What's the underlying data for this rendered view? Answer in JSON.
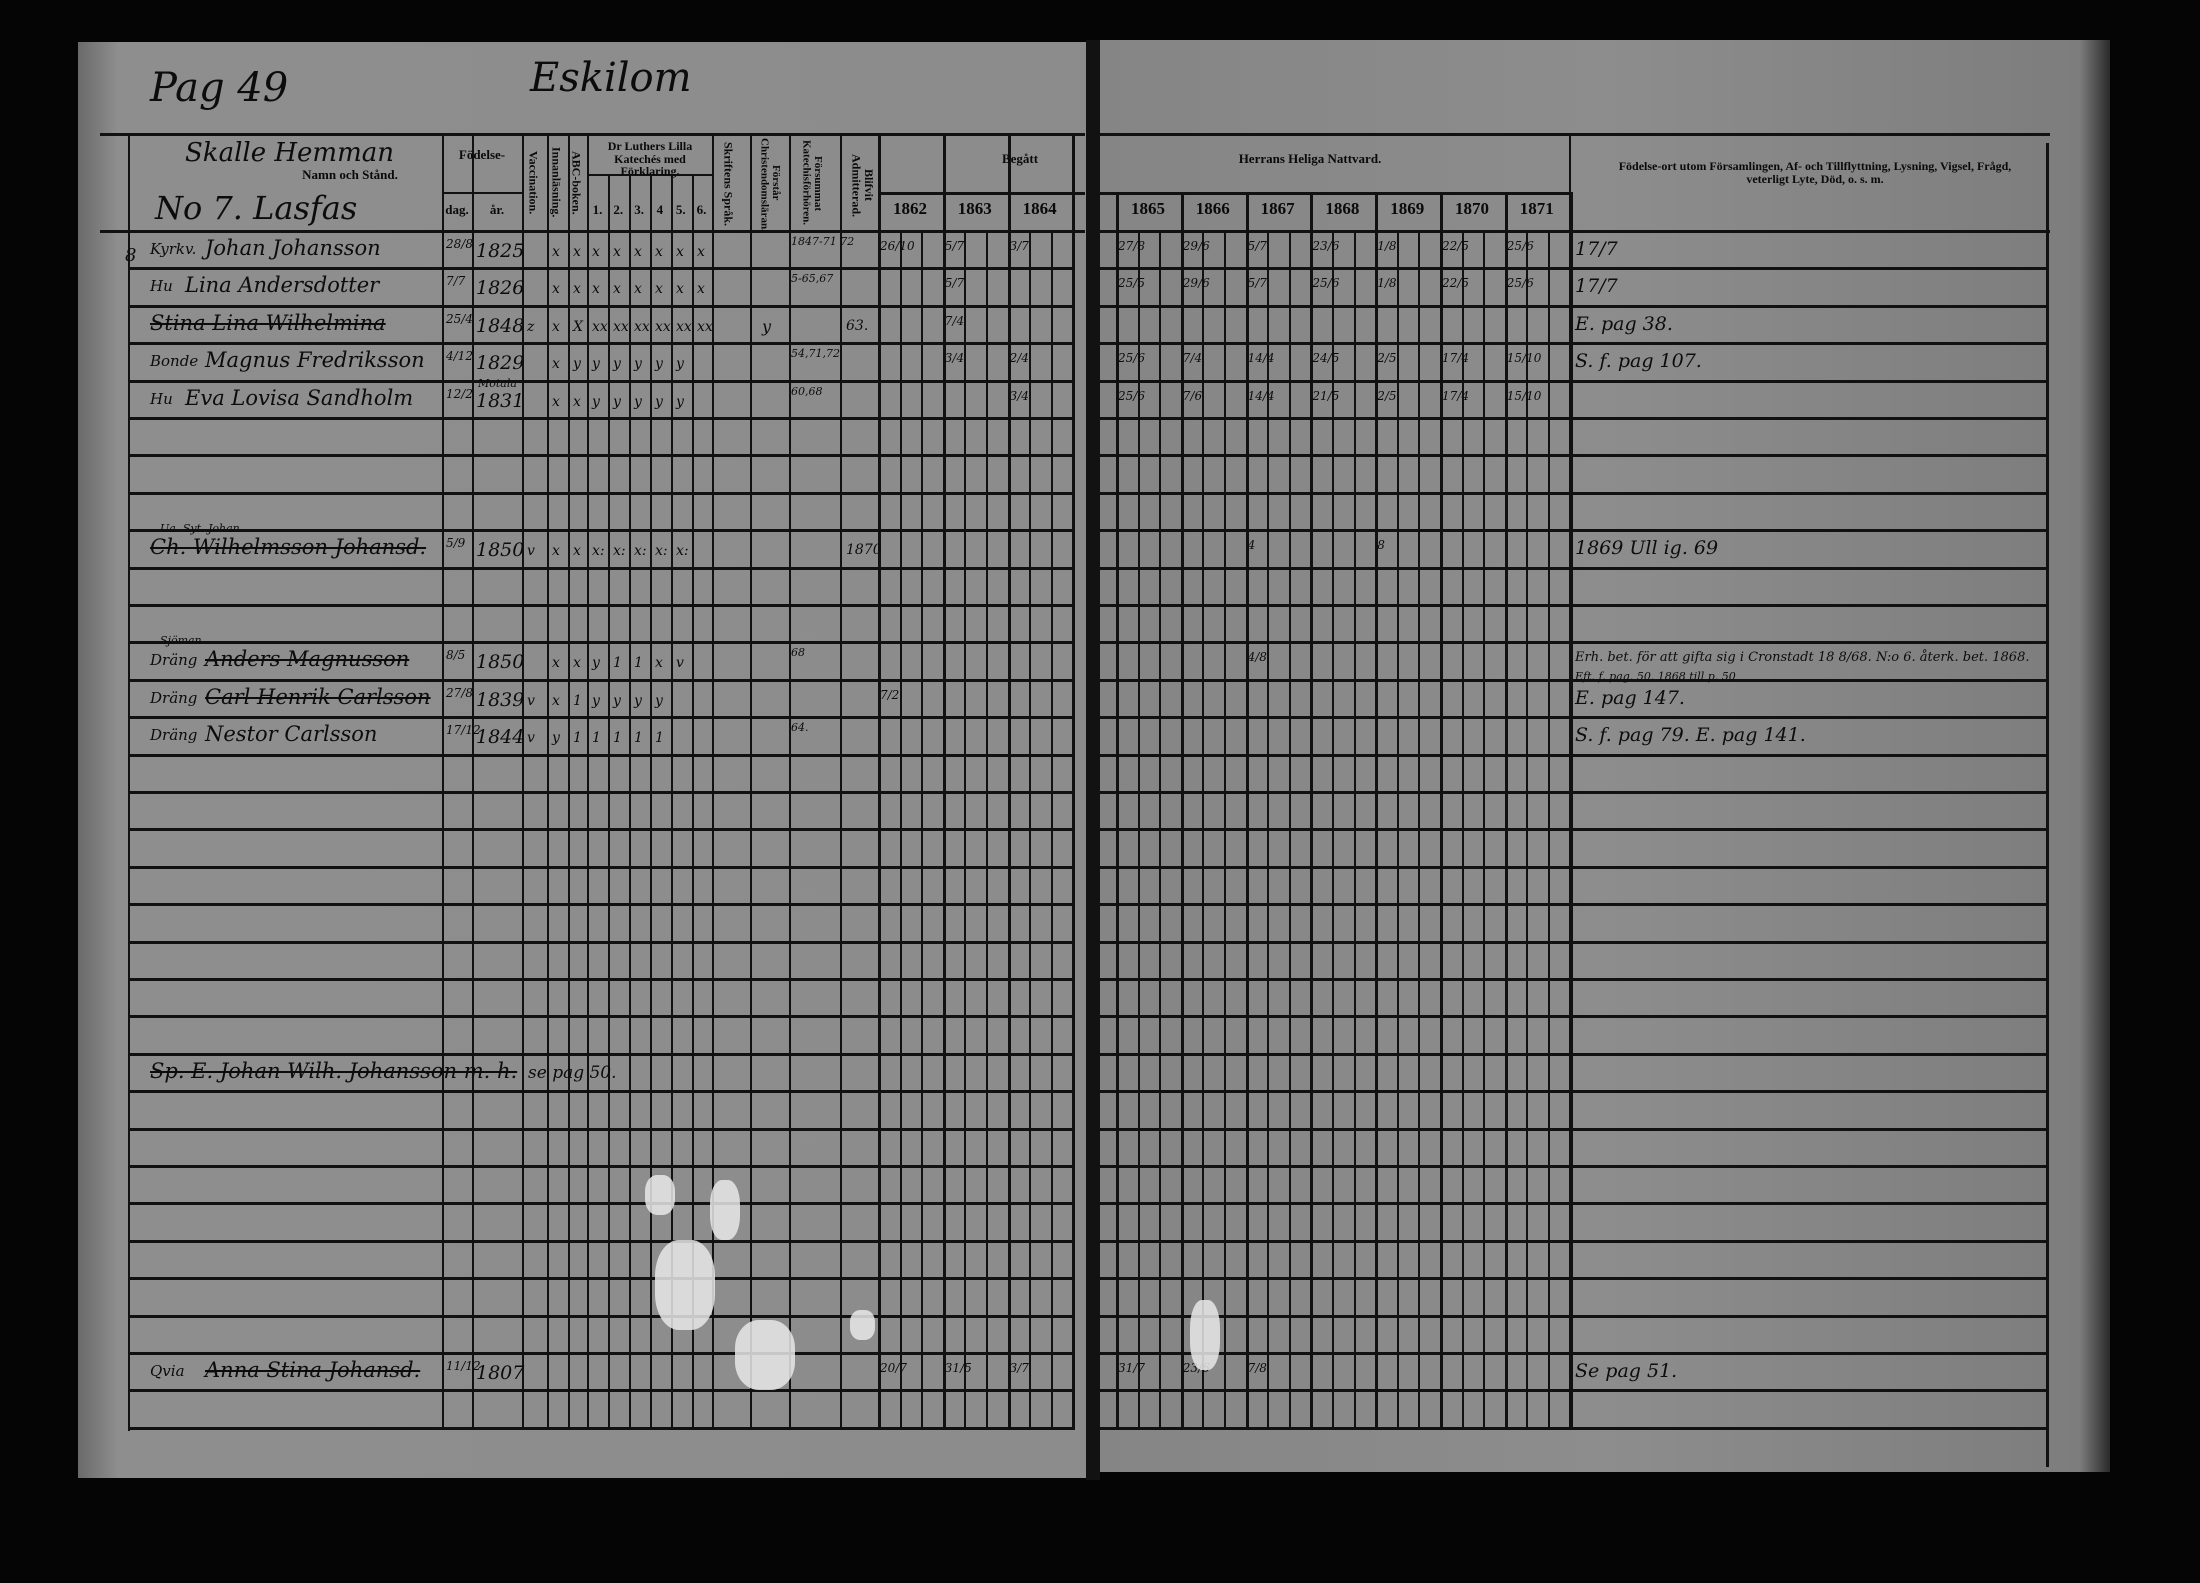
{
  "header": {
    "page_ref": "Pag 49",
    "place": "Eskilom",
    "farm": "Skalle Hemman",
    "homestead": "No 7. Lasfas",
    "margin_mark": "8"
  },
  "columns": {
    "name": "Namn och Stånd.",
    "birth": "Födelse-",
    "day": "dag.",
    "year": "år.",
    "vaccination": "Vaccination.",
    "reading": "Innanläsning.",
    "abc": "ABC-boken.",
    "catechism": "Dr Luthers Lilla Katechés med Förklaring.",
    "catechism_parts": [
      "1.",
      "2.",
      "3.",
      "4",
      "5.",
      "6."
    ],
    "scripture": "Skriftens Språk.",
    "understands": "Förstår Christendomsläran.",
    "missed": "Försummat Katechisförhören.",
    "admitted": "Blifvit Admitterad.",
    "communion_left": "Begått",
    "years_left": [
      "1862",
      "1863",
      "1864"
    ],
    "communion_right": "Herrans Heliga Nattvard.",
    "years_right": [
      "1865",
      "1866",
      "1867",
      "1868",
      "1869",
      "1870",
      "1871"
    ],
    "remarks": "Födelse-ort utom Församlingen, Af- och Tillflyttning, Lysning, Vigsel, Frågd, veterligt Lyte, Död, o. s. m."
  },
  "rows": [
    {
      "title": "Kyrkv.",
      "name": "Johan Johansson",
      "day": "28/8",
      "year": "1825",
      "marks": [
        "",
        "x",
        "x",
        "x",
        "x",
        "x",
        "x",
        "x",
        "x"
      ],
      "missed": "1847-71 72",
      "communion": {
        "1862": "26/10",
        "1863": "5/7",
        "1864": "3/7",
        "1865": "27/8",
        "1866": "29/6",
        "1867": "5/7",
        "1868": "23/6",
        "1869": "1/8",
        "1870": "22/5",
        "1871": "25/6"
      },
      "remark": "17/7"
    },
    {
      "title": "Hu",
      "name": "Lina Andersdotter",
      "day": "7/7",
      "year": "1826",
      "marks": [
        "",
        "x",
        "x",
        "x",
        "x",
        "x",
        "x",
        "x",
        "x"
      ],
      "missed": "5-65,67",
      "communion": {
        "1863": "5/7",
        "1865": "25/5",
        "1866": "29/6",
        "1867": "5/7",
        "1868": "25/6",
        "1869": "1/8",
        "1870": "22/5",
        "1871": "25/6"
      },
      "remark": "17/7"
    },
    {
      "name": "Stina Lina Wilhelmina",
      "struck": true,
      "day": "25/4",
      "year": "1848",
      "marks": [
        "z",
        "x",
        "X",
        "xx",
        "xx",
        "xx",
        "xx",
        "xx",
        "xx"
      ],
      "understands": "y",
      "admitted": "63.",
      "communion": {
        "1863": "7/4"
      },
      "remark": "E. pag 38."
    },
    {
      "title": "Bonde",
      "name": "Magnus Fredriksson",
      "day": "4/12",
      "year": "1829",
      "marks": [
        "",
        "x",
        "y",
        "y",
        "y",
        "y",
        "y",
        "y",
        ""
      ],
      "missed": "54,71,72",
      "communion": {
        "1863": "3/4",
        "1864": "2/4",
        "1865": "25/6",
        "1866": "7/4",
        "1867": "14/4",
        "1868": "24/5",
        "1869": "2/5",
        "1870": "17/4",
        "1871": "15/10"
      },
      "remark": "S. f. pag 107."
    },
    {
      "title": "Hu",
      "name": "Eva Lovisa Sandholm",
      "day": "12/2",
      "year": "1831",
      "birth_note": "Motala",
      "marks": [
        "",
        "x",
        "x",
        "y",
        "y",
        "y",
        "y",
        "y",
        ""
      ],
      "missed": "60,68",
      "communion": {
        "1864": "3/4",
        "1865": "25/6",
        "1866": "7/6",
        "1867": "14/4",
        "1868": "21/5",
        "1869": "2/5",
        "1870": "17/4",
        "1871": "15/10"
      }
    },
    {},
    {},
    {},
    {
      "note_above": "Ua. Syt. Johan",
      "name": "Ch. Wilhelmsson Johansd.",
      "struck": true,
      "day": "5/9",
      "year": "1850",
      "marks": [
        "v",
        "x",
        "x",
        "x:",
        "x:",
        "x:",
        "x:",
        "x:",
        ""
      ],
      "admitted": "1870",
      "communion": {
        "1867": "4",
        "1869": "8"
      },
      "remark": "1869 Ull ig. 69"
    },
    {},
    {},
    {
      "note_above": "Sjöman",
      "title": "Dräng",
      "name": "Anders Magnusson",
      "struck": true,
      "day": "8/5",
      "year": "1850",
      "marks": [
        "",
        "x",
        "x",
        "y",
        "1",
        "1",
        "x",
        "v",
        ""
      ],
      "missed": "68",
      "communion": {
        "1867": "4/8"
      },
      "remark": "Erh. bet. för att gifta sig i Cronstadt 18 8/68. N:o 6. återk. bet. 1868."
    },
    {
      "title": "Dräng",
      "name": "Carl Henrik Carlsson",
      "struck": true,
      "day": "27/8",
      "year": "1839",
      "marks": [
        "v",
        "x",
        "1",
        "y",
        "y",
        "y",
        "y",
        "",
        ""
      ],
      "communion": {
        "1862": "7/2"
      },
      "remark_above": "Eft. f. pag. 50. 1868 till p. 50",
      "remark": "E. pag 147."
    },
    {
      "title": "Dräng",
      "name": "Nestor Carlsson",
      "day": "17/12",
      "year": "1844",
      "marks": [
        "v",
        "y",
        "1",
        "1",
        "1",
        "1",
        "1",
        "",
        ""
      ],
      "missed": "64.",
      "remark": "S. f. pag 79. E. pag 141."
    },
    {},
    {},
    {},
    {},
    {},
    {},
    {},
    {},
    {
      "name": "Sp. E. Johan Wilh. Johansson m. h.",
      "struck": true,
      "crossref": "se pag 50."
    },
    {},
    {},
    {},
    {},
    {},
    {},
    {},
    {
      "title": "Qvia",
      "name": "Anna Stina Johansd.",
      "struck": true,
      "day": "11/12",
      "year": "1807",
      "communion": {
        "1862": "20/7",
        "1863": "31/5",
        "1864": "3/7",
        "1865": "31/7",
        "1866": "23/6",
        "1867": "7/8"
      },
      "remark": "Se pag 51."
    },
    {}
  ],
  "colors": {
    "paper": "#8c8c8c",
    "ink": "#0c0c0c",
    "background": "#050505"
  }
}
